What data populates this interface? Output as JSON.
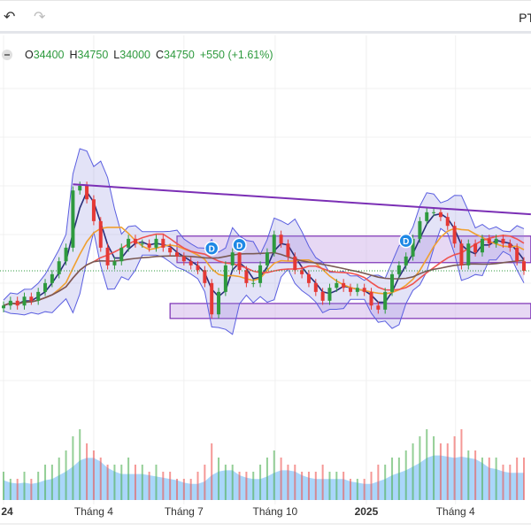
{
  "toolbar": {
    "undo_icon": "undo-arrow-icon",
    "redo_icon": "redo-arrow-icon",
    "right_label": "PT"
  },
  "legend": {
    "collapse_icon": "minus-icon",
    "o_label": "O",
    "o_value": "34400",
    "h_label": "H",
    "h_value": "34750",
    "l_label": "L",
    "l_value": "34000",
    "c_label": "C",
    "c_value": "34750",
    "change": "+550 (+1.61%)"
  },
  "colors": {
    "up": "#2e9a3e",
    "down": "#e53935",
    "trendline": "#7b2fb5",
    "zone_fill": "#c9a8e6",
    "bands": "#5a5ee0",
    "ma_fast": "#2b2f7a",
    "ma_orange": "#f0a030",
    "ma_red": "#ef5350",
    "ma_brown": "#7a5a55",
    "volume_up": "#4caf50",
    "volume_down": "#ef5350",
    "volume_area": "#64b5f6",
    "last_price": "#2e9a3e",
    "marker": "#1e88e5"
  },
  "chart_data": {
    "type": "candlestick",
    "last_price": 34750,
    "x_ticks": [
      {
        "date": "2024-01-01",
        "label": "24"
      },
      {
        "date": "2024-04-01",
        "label": "Tháng 4"
      },
      {
        "date": "2024-07-01",
        "label": "Tháng 7"
      },
      {
        "date": "2024-10-01",
        "label": "Tháng 10"
      },
      {
        "date": "2025-01-01",
        "label": "2025"
      },
      {
        "date": "2025-04-01",
        "label": "Tháng 4"
      }
    ],
    "series": [
      [
        "2024-01-01",
        32200
      ],
      [
        "2024-01-08",
        32550
      ],
      [
        "2024-01-15",
        32200
      ],
      [
        "2024-01-22",
        32850
      ],
      [
        "2024-01-29",
        32550
      ],
      [
        "2024-02-05",
        33200
      ],
      [
        "2024-02-12",
        33850
      ],
      [
        "2024-02-19",
        34500
      ],
      [
        "2024-02-26",
        35450
      ],
      [
        "2024-03-04",
        36450
      ],
      [
        "2024-03-11",
        40650
      ],
      [
        "2024-03-18",
        41000
      ],
      [
        "2024-03-25",
        40000
      ],
      [
        "2024-04-01",
        38400
      ],
      [
        "2024-04-08",
        36450
      ],
      [
        "2024-04-15",
        35150
      ],
      [
        "2024-04-22",
        35450
      ],
      [
        "2024-04-29",
        36450
      ],
      [
        "2024-05-06",
        37100
      ],
      [
        "2024-05-13",
        36750
      ],
      [
        "2024-05-20",
        36750
      ],
      [
        "2024-05-27",
        36450
      ],
      [
        "2024-06-03",
        37100
      ],
      [
        "2024-06-10",
        36450
      ],
      [
        "2024-06-17",
        36100
      ],
      [
        "2024-06-24",
        35800
      ],
      [
        "2024-07-01",
        35450
      ],
      [
        "2024-07-08",
        35150
      ],
      [
        "2024-07-15",
        34800
      ],
      [
        "2024-07-22",
        33850
      ],
      [
        "2024-07-29",
        31550
      ],
      [
        "2024-08-05",
        33200
      ],
      [
        "2024-08-12",
        35150
      ],
      [
        "2024-08-19",
        36100
      ],
      [
        "2024-08-26",
        34800
      ],
      [
        "2024-09-02",
        33850
      ],
      [
        "2024-09-09",
        33850
      ],
      [
        "2024-09-16",
        35150
      ],
      [
        "2024-09-23",
        36100
      ],
      [
        "2024-09-30",
        37400
      ],
      [
        "2024-10-07",
        36750
      ],
      [
        "2024-10-14",
        35800
      ],
      [
        "2024-10-21",
        34800
      ],
      [
        "2024-10-28",
        34500
      ],
      [
        "2024-11-04",
        33850
      ],
      [
        "2024-11-11",
        33200
      ],
      [
        "2024-11-18",
        32550
      ],
      [
        "2024-11-25",
        33500
      ],
      [
        "2024-12-02",
        33850
      ],
      [
        "2024-12-09",
        33500
      ],
      [
        "2024-12-16",
        33200
      ],
      [
        "2024-12-23",
        33500
      ],
      [
        "2024-12-30",
        33200
      ],
      [
        "2025-01-06",
        32200
      ],
      [
        "2025-01-13",
        31900
      ],
      [
        "2025-01-20",
        33200
      ],
      [
        "2025-01-27",
        34500
      ],
      [
        "2025-02-03",
        35150
      ],
      [
        "2025-02-10",
        35800
      ],
      [
        "2025-02-17",
        37100
      ],
      [
        "2025-02-24",
        38400
      ],
      [
        "2025-03-03",
        39050
      ],
      [
        "2025-03-10",
        39050
      ],
      [
        "2025-03-17",
        38700
      ],
      [
        "2025-03-24",
        38050
      ],
      [
        "2025-03-31",
        36750
      ],
      [
        "2025-04-07",
        35150
      ],
      [
        "2025-04-14",
        36750
      ],
      [
        "2025-04-21",
        36100
      ],
      [
        "2025-04-28",
        37100
      ],
      [
        "2025-05-05",
        36750
      ],
      [
        "2025-05-12",
        37100
      ],
      [
        "2025-05-19",
        36750
      ],
      [
        "2025-05-26",
        36450
      ],
      [
        "2025-06-02",
        35450
      ],
      [
        "2025-06-09",
        34750
      ]
    ],
    "volume": [
      4,
      3,
      3,
      4,
      3,
      4,
      5,
      5,
      6,
      7,
      9,
      10,
      8,
      7,
      6,
      5,
      5,
      5,
      6,
      5,
      5,
      4,
      5,
      4,
      4,
      3,
      3,
      3,
      4,
      5,
      8,
      6,
      5,
      5,
      4,
      4,
      4,
      5,
      6,
      7,
      6,
      5,
      5,
      4,
      4,
      4,
      5,
      4,
      4,
      4,
      3,
      3,
      3,
      4,
      5,
      5,
      6,
      6,
      7,
      8,
      9,
      10,
      9,
      8,
      8,
      9,
      10,
      7,
      7,
      6,
      6,
      6,
      5,
      5,
      6,
      6
    ],
    "drawings": {
      "trendline": {
        "from": [
          "2024-03-11",
          41100
        ],
        "to": [
          "2025-06-16",
          38900
        ]
      },
      "zones": [
        {
          "from": "2024-06-24",
          "to": "2025-06-16",
          "top": 37300,
          "bottom": 35350
        },
        {
          "from": "2024-06-17",
          "to": "2025-06-16",
          "top": 32350,
          "bottom": 31250
        }
      ],
      "markers": [
        {
          "date": "2024-07-29",
          "price": 36400,
          "label": "D"
        },
        {
          "date": "2024-08-26",
          "price": 36650,
          "label": "D"
        },
        {
          "date": "2025-02-10",
          "price": 36950,
          "label": "D"
        }
      ]
    },
    "indicators": [
      "bollinger-bands",
      "moving-averages"
    ],
    "grid": true
  }
}
